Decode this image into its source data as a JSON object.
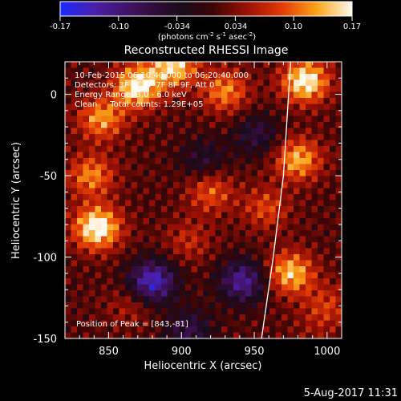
{
  "chart_data": {
    "type": "heatmap",
    "title": "Reconstructed RHESSI Image",
    "xlabel": "Heliocentric X (arcsec)",
    "ylabel": "Heliocentric Y (arcsec)",
    "xlim": [
      820,
      1010
    ],
    "ylim": [
      -150,
      20
    ],
    "x_ticks": [
      850,
      900,
      950,
      1000
    ],
    "y_ticks": [
      0,
      -50,
      -100,
      -150
    ],
    "colorbar": {
      "range": [
        -0.17,
        0.17
      ],
      "ticks": [
        "-0.17",
        "-0.10",
        "-0.034",
        "0.034",
        "0.10",
        "0.17"
      ],
      "unit_label": "(photons cm",
      "unit_exp1": "-2",
      "unit_mid": " s",
      "unit_exp2": "-1",
      "unit_tail": " asec",
      "unit_exp3": "-2",
      "unit_close": ")"
    },
    "annotations": [
      "10-Feb-2015 06:10:40.000 to 06:20:40.000",
      "Detectors: 3F 5F 6F 7F 8F 9F, Att 0",
      "Energy Range: 3.0 - 6.0 keV",
      "Clean     Total counts: 1.29E+05"
    ],
    "peak_label": "Position of Peak = [843,-81]",
    "peak": [
      843,
      -81
    ],
    "limb_arc": [
      [
        975,
        20
      ],
      [
        970,
        -50
      ],
      [
        963,
        -100
      ],
      [
        955,
        -150
      ]
    ],
    "blobs": [
      {
        "x": 842,
        "y": -82,
        "val": 0.17
      },
      {
        "x": 838,
        "y": -50,
        "val": 0.1
      },
      {
        "x": 845,
        "y": -15,
        "val": 0.11
      },
      {
        "x": 870,
        "y": 5,
        "val": 0.16
      },
      {
        "x": 895,
        "y": 18,
        "val": 0.14
      },
      {
        "x": 930,
        "y": 2,
        "val": 0.1
      },
      {
        "x": 985,
        "y": 8,
        "val": 0.16
      },
      {
        "x": 980,
        "y": -40,
        "val": 0.12
      },
      {
        "x": 975,
        "y": -110,
        "val": 0.13
      },
      {
        "x": 1000,
        "y": -130,
        "val": 0.06
      },
      {
        "x": 920,
        "y": -60,
        "val": 0.08
      },
      {
        "x": 958,
        "y": -70,
        "val": 0.07
      },
      {
        "x": 865,
        "y": -130,
        "val": 0.04
      },
      {
        "x": 905,
        "y": -90,
        "val": 0.05
      },
      {
        "x": 880,
        "y": -115,
        "val": -0.16
      },
      {
        "x": 942,
        "y": -115,
        "val": -0.13
      },
      {
        "x": 905,
        "y": -145,
        "val": -0.08
      },
      {
        "x": 915,
        "y": -40,
        "val": -0.06
      },
      {
        "x": 952,
        "y": -25,
        "val": -0.07
      },
      {
        "x": 990,
        "y": -145,
        "val": 0.02
      }
    ]
  },
  "footer": {
    "timestamp": "5-Aug-2017 11:31"
  },
  "palette": {
    "background": "#000000",
    "foreground": "#ffffff"
  }
}
